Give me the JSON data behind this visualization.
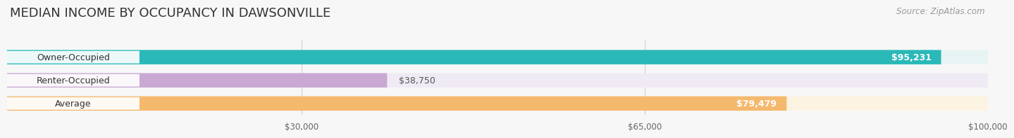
{
  "title": "MEDIAN INCOME BY OCCUPANCY IN DAWSONVILLE",
  "source": "Source: ZipAtlas.com",
  "categories": [
    "Owner-Occupied",
    "Renter-Occupied",
    "Average"
  ],
  "values": [
    95231,
    38750,
    79479
  ],
  "bar_colors": [
    "#2ab8b8",
    "#c9a8d4",
    "#f5b96e"
  ],
  "bar_bg_colors": [
    "#e8f4f4",
    "#f0eaf5",
    "#fdf3e3"
  ],
  "value_labels": [
    "$95,231",
    "$38,750",
    "$79,479"
  ],
  "value_inside": [
    true,
    false,
    true
  ],
  "xlim": [
    0,
    100000
  ],
  "xticks": [
    30000,
    65000,
    100000
  ],
  "xtick_labels": [
    "$30,000",
    "$65,000",
    "$100,000"
  ],
  "title_fontsize": 13,
  "source_fontsize": 8.5,
  "label_fontsize": 9,
  "bar_height": 0.62,
  "background_color": "#f7f7f7",
  "bar_gap": 0.38
}
